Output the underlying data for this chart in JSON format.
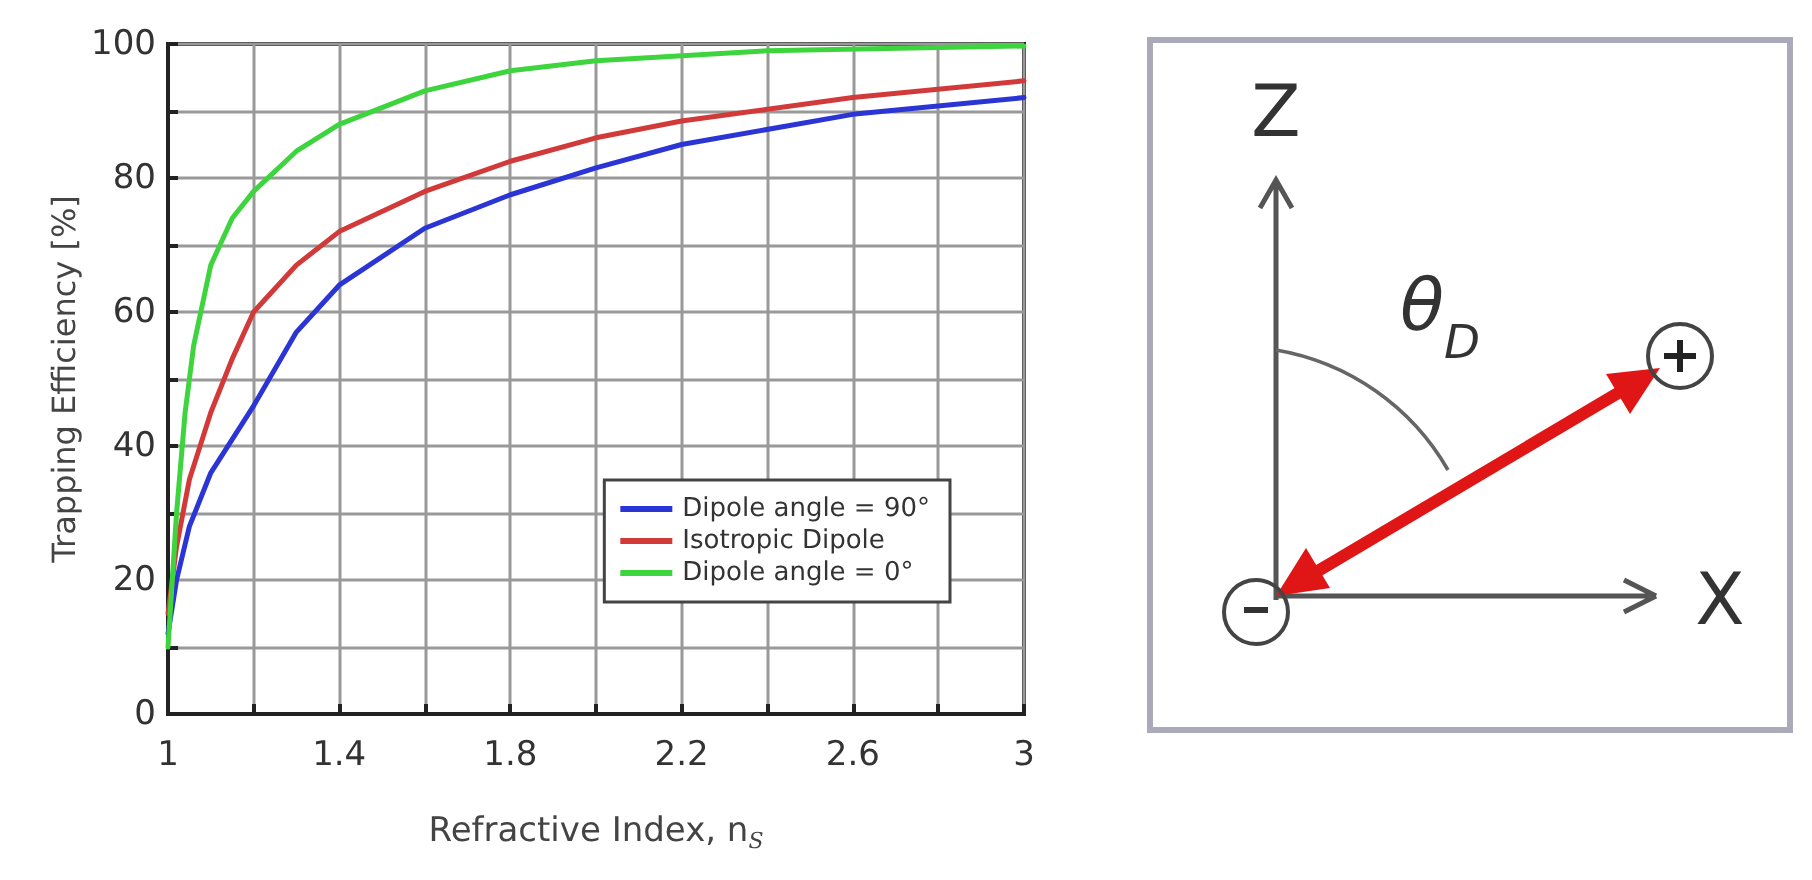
{
  "chart_data": {
    "type": "line",
    "xlabel": "Refractive Index, n$_{S}$",
    "ylabel": "Trapping Efficiency [%]",
    "annotations": [
      "Z",
      "X",
      "θ$_{D}$"
    ],
    "x": [
      1.0,
      1.02,
      1.05,
      1.1,
      1.15,
      1.2,
      1.3,
      1.4,
      1.6,
      1.8,
      2.0,
      2.2,
      2.6,
      3.0
    ],
    "series": [
      {
        "name": "Dipole angle = 90°",
        "color": "#2b35d6",
        "values": [
          12,
          20,
          28,
          36,
          41,
          46,
          57,
          64,
          72.5,
          77.5,
          81.5,
          85,
          89.5,
          92
        ]
      },
      {
        "name": "Isotropic Dipole",
        "color": "#d23a3a",
        "values": [
          15,
          25,
          35,
          45,
          53,
          60,
          67,
          72,
          78,
          82.5,
          86,
          88.5,
          92,
          94.5
        ]
      },
      {
        "name": "Dipole angle = 0°",
        "color": "#3ed43e",
        "x": [
          1.0,
          1.02,
          1.04,
          1.06,
          1.1,
          1.15,
          1.2,
          1.3,
          1.4,
          1.6,
          1.8,
          2.0,
          2.4,
          3.0
        ],
        "values": [
          10,
          30,
          45,
          55,
          67,
          74,
          78,
          84,
          88,
          93,
          96,
          97.5,
          99,
          99.7
        ]
      }
    ],
    "xlim": [
      1,
      3
    ],
    "xticks": [
      1,
      {
        "value": 1.2,
        "label": null
      },
      1.4,
      {
        "value": 1.6,
        "label": null
      },
      1.8,
      {
        "value": 2.0,
        "label": null
      },
      2.2,
      {
        "value": 2.4,
        "label": null
      },
      2.6,
      {
        "value": 2.8,
        "label": null
      },
      3
    ],
    "ylim": [
      0,
      100
    ],
    "yticks": [
      0,
      {
        "value": 10,
        "label": null
      },
      20,
      {
        "value": 30,
        "label": null
      },
      40,
      {
        "value": 50,
        "label": null
      },
      60,
      {
        "value": 70,
        "label": null
      },
      80,
      {
        "value": 90,
        "label": null
      },
      100
    ],
    "grid": true,
    "legend": "bottom right",
    "marker": "none",
    "line_style": "solid"
  }
}
